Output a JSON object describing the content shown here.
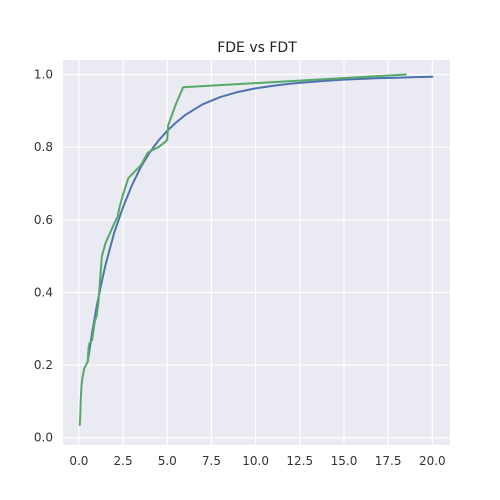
{
  "chart_data": {
    "type": "line",
    "title": "FDE vs FDT",
    "xlabel": "",
    "ylabel": "",
    "xlim": [
      -0.9,
      21.0
    ],
    "ylim": [
      -0.02,
      1.04
    ],
    "grid": true,
    "background_color": "#EAEAF2",
    "grid_color": "#FFFFFF",
    "x_ticks": [
      0.0,
      2.5,
      5.0,
      7.5,
      10.0,
      12.5,
      15.0,
      17.5,
      20.0
    ],
    "x_tick_labels": [
      "0.0",
      "2.5",
      "5.0",
      "7.5",
      "10.0",
      "12.5",
      "15.0",
      "17.5",
      "20.0"
    ],
    "y_ticks": [
      0.0,
      0.2,
      0.4,
      0.6,
      0.8,
      1.0
    ],
    "y_tick_labels": [
      "0.0",
      "0.2",
      "0.4",
      "0.6",
      "0.8",
      "1.0"
    ],
    "series": [
      {
        "color": "#4C72B0",
        "x": [
          0.5,
          0.75,
          1.0,
          1.25,
          1.5,
          1.75,
          2.0,
          2.5,
          3.0,
          3.5,
          4.0,
          4.5,
          5.0,
          5.5,
          6.0,
          7.0,
          8.0,
          9.0,
          10.0,
          11.0,
          12.0,
          13.0,
          14.0,
          15.0,
          16.0,
          17.0,
          18.0,
          19.0,
          20.0
        ],
        "y": [
          0.21,
          0.29,
          0.36,
          0.42,
          0.475,
          0.52,
          0.565,
          0.635,
          0.695,
          0.745,
          0.785,
          0.818,
          0.845,
          0.868,
          0.888,
          0.918,
          0.938,
          0.952,
          0.962,
          0.969,
          0.975,
          0.979,
          0.983,
          0.986,
          0.988,
          0.99,
          0.991,
          0.993,
          0.994
        ]
      },
      {
        "color": "#55A868",
        "x": [
          0.05,
          0.08,
          0.1,
          0.15,
          0.2,
          0.3,
          0.5,
          0.55,
          0.6,
          0.75,
          0.9,
          1.0,
          1.1,
          1.3,
          1.5,
          2.0,
          2.2,
          2.3,
          2.5,
          2.8,
          3.0,
          3.5,
          3.9,
          4.5,
          4.9,
          5.0,
          5.05,
          5.5,
          5.9,
          18.5
        ],
        "y": [
          0.035,
          0.065,
          0.1,
          0.145,
          0.165,
          0.19,
          0.21,
          0.25,
          0.26,
          0.27,
          0.32,
          0.335,
          0.37,
          0.5,
          0.535,
          0.59,
          0.61,
          0.635,
          0.67,
          0.715,
          0.725,
          0.75,
          0.785,
          0.8,
          0.815,
          0.82,
          0.86,
          0.92,
          0.965,
          1.0
        ]
      }
    ]
  }
}
